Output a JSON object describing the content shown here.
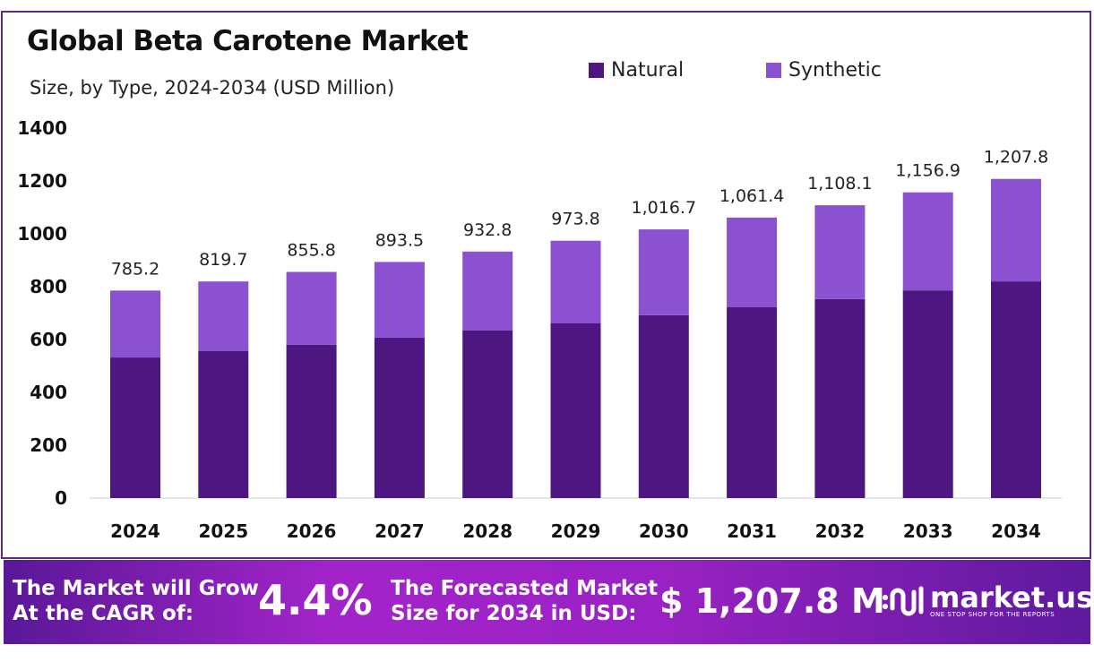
{
  "chart_data": {
    "type": "bar",
    "stacked": true,
    "title": "Global Beta Carotene Market",
    "subtitle": "Size, by Type, 2024-2034 (USD Million)",
    "categories": [
      "2024",
      "2025",
      "2026",
      "2027",
      "2028",
      "2029",
      "2030",
      "2031",
      "2032",
      "2033",
      "2034"
    ],
    "series": [
      {
        "name": "Natural",
        "color": "#4e1681",
        "values": [
          532,
          556,
          580,
          607,
          634,
          661,
          692,
          722,
          753,
          786,
          820
        ]
      },
      {
        "name": "Synthetic",
        "color": "#8b51d0",
        "values": [
          253.2,
          263.7,
          275.8,
          286.5,
          298.8,
          312.8,
          324.7,
          339.4,
          355.1,
          370.9,
          387.8
        ]
      }
    ],
    "totals": [
      "785.2",
      "819.7",
      "855.8",
      "893.5",
      "932.8",
      "973.8",
      "1,016.7",
      "1,061.4",
      "1,108.1",
      "1,156.9",
      "1,207.8"
    ],
    "yticks": [
      "0",
      "200",
      "400",
      "600",
      "800",
      "1000",
      "1200",
      "1400"
    ],
    "ylim": [
      0,
      1400
    ],
    "legend_position": "top-right",
    "grid": false
  },
  "banner": {
    "cagr_label_1": "The Market will Grow",
    "cagr_label_2": "At the CAGR of:",
    "cagr_value": "4.4%",
    "forecast_label_1": "The Forecasted Market",
    "forecast_label_2": "Size for 2034 in USD:",
    "forecast_value": "$ 1,207.8 M",
    "logo_text": "market.us",
    "logo_tagline": "ONE STOP SHOP FOR THE REPORTS"
  }
}
